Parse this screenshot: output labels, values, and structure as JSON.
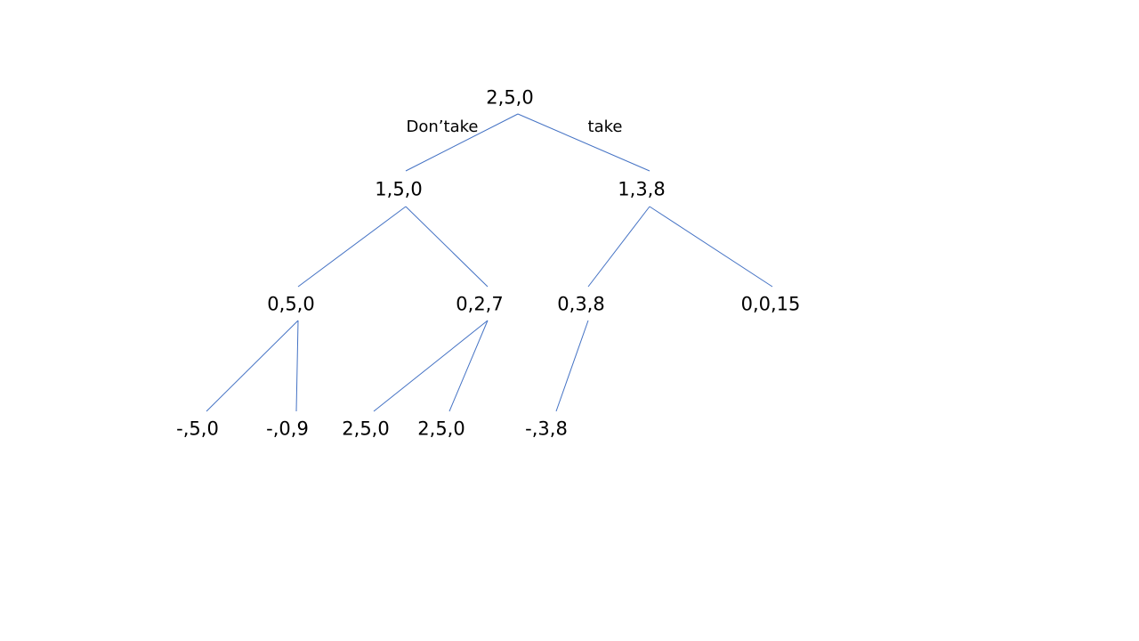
{
  "tree": {
    "line_color": "#4472C4",
    "edge_labels": {
      "left": "Don’take",
      "right": "take"
    },
    "nodes": {
      "root": "2,5,0",
      "l1_left": "1,5,0",
      "l1_right": "1,3,8",
      "l2_a": "0,5,0",
      "l2_b": "0,2,7",
      "l2_c": "0,3,8",
      "l2_d": "0,0,15",
      "l3_a": "-,5,0",
      "l3_b": "-,0,9",
      "l3_c": "2,5,0",
      "l3_d": "2,5,0",
      "l3_e": "-,3,8"
    }
  }
}
